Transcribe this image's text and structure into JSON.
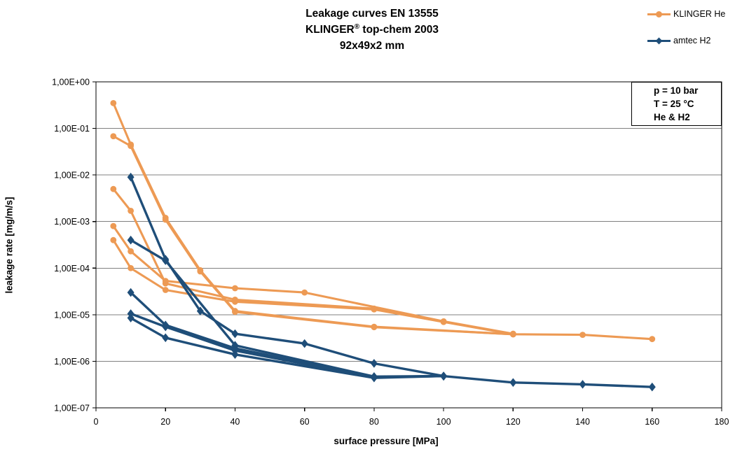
{
  "title": {
    "line1": "Leakage curves EN 13555",
    "line2_pre": "KLINGER",
    "line2_sup": "®",
    "line2_post": " top-chem 2003",
    "line3": "92x49x2 mm"
  },
  "legend": {
    "items": [
      {
        "label": "KLINGER He",
        "group": "klinger_he",
        "marker": "circle"
      },
      {
        "label": "amtec H2",
        "group": "amtec_h2",
        "marker": "diamond"
      }
    ]
  },
  "annotation_box": {
    "line1": "p = 10 bar",
    "line2": "T = 25 °C",
    "line3": "He & H2"
  },
  "colors": {
    "klinger_he": "#ED9A54",
    "amtec_h2": "#1F4E79",
    "grid": "#808080",
    "axis": "#000000",
    "text": "#000000",
    "background": "#FFFFFF"
  },
  "chart_data": {
    "type": "line",
    "title": "Leakage curves EN 13555 KLINGER® top-chem 2003 92x49x2 mm",
    "xlabel": "surface pressure [MPa]",
    "ylabel": "leakage rate [mg/m/s]",
    "xlim": [
      0,
      180
    ],
    "ylim": [
      1e-07,
      1
    ],
    "y_log": true,
    "grid": "horizontal-only",
    "legend_position": "top-right-outside",
    "x_ticks": [
      0,
      20,
      40,
      60,
      80,
      100,
      120,
      140,
      160,
      180
    ],
    "y_tick_labels": [
      "1,00E+00",
      "1,00E-01",
      "1,00E-02",
      "1,00E-03",
      "1,00E-04",
      "1,00E-05",
      "1,00E-06",
      "1,00E-07"
    ],
    "series": [
      {
        "name": "KLINGER He 1",
        "group": "klinger_he",
        "marker": "circle",
        "points": [
          [
            5,
            0.35
          ],
          [
            10,
            0.045
          ],
          [
            20,
            0.0012
          ],
          [
            30,
            9e-05
          ],
          [
            40,
            1.2e-05
          ],
          [
            80,
            5.5e-06
          ],
          [
            120,
            3.8e-06
          ],
          [
            140,
            3.7e-06
          ],
          [
            160,
            3e-06
          ]
        ]
      },
      {
        "name": "KLINGER He 2",
        "group": "klinger_he",
        "marker": "circle",
        "points": [
          [
            5,
            0.068
          ],
          [
            10,
            0.042
          ],
          [
            20,
            0.0011
          ],
          [
            30,
            8.5e-05
          ],
          [
            40,
            1.15e-05
          ],
          [
            80,
            5.4e-06
          ],
          [
            120,
            3.8e-06
          ]
        ]
      },
      {
        "name": "KLINGER He 3",
        "group": "klinger_he",
        "marker": "circle",
        "points": [
          [
            5,
            0.005
          ],
          [
            10,
            0.0017
          ],
          [
            20,
            4.7e-05
          ],
          [
            40,
            2.1e-05
          ],
          [
            80,
            1.35e-05
          ],
          [
            100,
            7e-06
          ],
          [
            120,
            3.8e-06
          ]
        ]
      },
      {
        "name": "KLINGER He 4",
        "group": "klinger_he",
        "marker": "circle",
        "points": [
          [
            5,
            0.0008
          ],
          [
            10,
            0.00023
          ],
          [
            20,
            5.3e-05
          ],
          [
            40,
            3.7e-05
          ],
          [
            60,
            3e-05
          ],
          [
            100,
            7.2e-06
          ],
          [
            120,
            3.9e-06
          ]
        ]
      },
      {
        "name": "KLINGER He 5",
        "group": "klinger_he",
        "marker": "circle",
        "points": [
          [
            5,
            0.0004
          ],
          [
            10,
            0.0001
          ],
          [
            20,
            3.4e-05
          ],
          [
            40,
            1.9e-05
          ],
          [
            80,
            1.3e-05
          ],
          [
            100,
            7e-06
          ]
        ]
      },
      {
        "name": "amtec H2 1",
        "group": "amtec_h2",
        "marker": "diamond",
        "points": [
          [
            10,
            0.009
          ],
          [
            20,
            0.000155
          ],
          [
            30,
            1.2e-05
          ],
          [
            40,
            3.9e-06
          ],
          [
            60,
            2.4e-06
          ],
          [
            80,
            9e-07
          ],
          [
            100,
            4.8e-07
          ],
          [
            120,
            3.5e-07
          ],
          [
            140,
            3.2e-07
          ],
          [
            160,
            2.8e-07
          ]
        ]
      },
      {
        "name": "amtec H2 2",
        "group": "amtec_h2",
        "marker": "diamond",
        "points": [
          [
            10,
            0.0004
          ],
          [
            20,
            0.000145
          ],
          [
            40,
            2.2e-06
          ],
          [
            80,
            4.7e-07
          ],
          [
            100,
            4.8e-07
          ]
        ]
      },
      {
        "name": "amtec H2 3",
        "group": "amtec_h2",
        "marker": "diamond",
        "points": [
          [
            10,
            3e-05
          ],
          [
            20,
            6e-06
          ],
          [
            40,
            1.9e-06
          ],
          [
            80,
            4.6e-07
          ],
          [
            100,
            4.8e-07
          ]
        ]
      },
      {
        "name": "amtec H2 4",
        "group": "amtec_h2",
        "marker": "diamond",
        "points": [
          [
            10,
            1.05e-05
          ],
          [
            20,
            5.5e-06
          ],
          [
            40,
            1.7e-06
          ],
          [
            80,
            4.5e-07
          ],
          [
            100,
            4.8e-07
          ]
        ]
      },
      {
        "name": "amtec H2 5",
        "group": "amtec_h2",
        "marker": "diamond",
        "points": [
          [
            10,
            8.5e-06
          ],
          [
            20,
            3.2e-06
          ],
          [
            40,
            1.4e-06
          ],
          [
            80,
            4.4e-07
          ],
          [
            100,
            4.8e-07
          ]
        ]
      }
    ]
  }
}
